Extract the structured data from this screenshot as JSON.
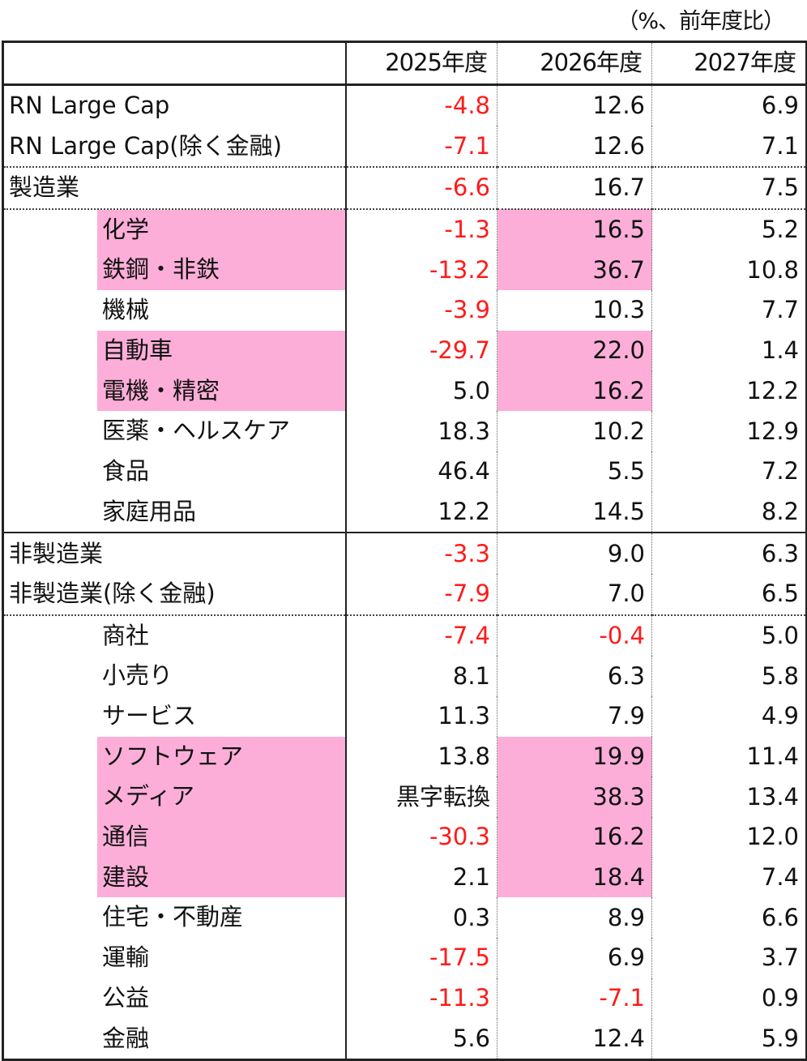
{
  "unit_note": "（%、前年度比）",
  "header": {
    "label": "",
    "cols": [
      "2025年度",
      "2026年度",
      "2027年度"
    ]
  },
  "highlight_color": "#fcaed9",
  "negative_color": "#ff1a1a",
  "rows": [
    {
      "label": "RN Large Cap",
      "indent": false,
      "v": [
        "-4.8",
        "12.6",
        "6.9"
      ],
      "neg": [
        true,
        false,
        false
      ],
      "pink_label": false,
      "pink_c2": false,
      "sep": "solid"
    },
    {
      "label": "RN Large Cap(除く金融)",
      "indent": false,
      "v": [
        "-7.1",
        "12.6",
        "7.1"
      ],
      "neg": [
        true,
        false,
        false
      ],
      "pink_label": false,
      "pink_c2": false,
      "sep": ""
    },
    {
      "label": "製造業",
      "indent": false,
      "v": [
        "-6.6",
        "16.7",
        "7.5"
      ],
      "neg": [
        true,
        false,
        false
      ],
      "pink_label": false,
      "pink_c2": false,
      "sep": "dotted"
    },
    {
      "label": "化学",
      "indent": true,
      "v": [
        "-1.3",
        "16.5",
        "5.2"
      ],
      "neg": [
        true,
        false,
        false
      ],
      "pink_label": true,
      "pink_c2": true,
      "sep": "dotted"
    },
    {
      "label": "鉄鋼・非鉄",
      "indent": true,
      "v": [
        "-13.2",
        "36.7",
        "10.8"
      ],
      "neg": [
        true,
        false,
        false
      ],
      "pink_label": true,
      "pink_c2": true,
      "sep": ""
    },
    {
      "label": "機械",
      "indent": true,
      "v": [
        "-3.9",
        "10.3",
        "7.7"
      ],
      "neg": [
        true,
        false,
        false
      ],
      "pink_label": false,
      "pink_c2": false,
      "sep": ""
    },
    {
      "label": "自動車",
      "indent": true,
      "v": [
        "-29.7",
        "22.0",
        "1.4"
      ],
      "neg": [
        true,
        false,
        false
      ],
      "pink_label": true,
      "pink_c2": true,
      "sep": ""
    },
    {
      "label": "電機・精密",
      "indent": true,
      "v": [
        "5.0",
        "16.2",
        "12.2"
      ],
      "neg": [
        false,
        false,
        false
      ],
      "pink_label": true,
      "pink_c2": true,
      "sep": ""
    },
    {
      "label": "医薬・ヘルスケア",
      "indent": true,
      "v": [
        "18.3",
        "10.2",
        "12.9"
      ],
      "neg": [
        false,
        false,
        false
      ],
      "pink_label": false,
      "pink_c2": false,
      "sep": ""
    },
    {
      "label": "食品",
      "indent": true,
      "v": [
        "46.4",
        "5.5",
        "7.2"
      ],
      "neg": [
        false,
        false,
        false
      ],
      "pink_label": false,
      "pink_c2": false,
      "sep": ""
    },
    {
      "label": "家庭用品",
      "indent": true,
      "v": [
        "12.2",
        "14.5",
        "8.2"
      ],
      "neg": [
        false,
        false,
        false
      ],
      "pink_label": false,
      "pink_c2": false,
      "sep": ""
    },
    {
      "label": "非製造業",
      "indent": false,
      "v": [
        "-3.3",
        "9.0",
        "6.3"
      ],
      "neg": [
        true,
        false,
        false
      ],
      "pink_label": false,
      "pink_c2": false,
      "sep": "solid"
    },
    {
      "label": "非製造業(除く金融)",
      "indent": false,
      "v": [
        "-7.9",
        "7.0",
        "6.5"
      ],
      "neg": [
        true,
        false,
        false
      ],
      "pink_label": false,
      "pink_c2": false,
      "sep": ""
    },
    {
      "label": "商社",
      "indent": true,
      "v": [
        "-7.4",
        "-0.4",
        "5.0"
      ],
      "neg": [
        true,
        true,
        false
      ],
      "pink_label": false,
      "pink_c2": false,
      "sep": "dotted"
    },
    {
      "label": "小売り",
      "indent": true,
      "v": [
        "8.1",
        "6.3",
        "5.8"
      ],
      "neg": [
        false,
        false,
        false
      ],
      "pink_label": false,
      "pink_c2": false,
      "sep": ""
    },
    {
      "label": "サービス",
      "indent": true,
      "v": [
        "11.3",
        "7.9",
        "4.9"
      ],
      "neg": [
        false,
        false,
        false
      ],
      "pink_label": false,
      "pink_c2": false,
      "sep": ""
    },
    {
      "label": "ソフトウェア",
      "indent": true,
      "v": [
        "13.8",
        "19.9",
        "11.4"
      ],
      "neg": [
        false,
        false,
        false
      ],
      "pink_label": true,
      "pink_c2": true,
      "sep": ""
    },
    {
      "label": "メディア",
      "indent": true,
      "v": [
        "黒字転換",
        "38.3",
        "13.4"
      ],
      "neg": [
        false,
        false,
        false
      ],
      "pink_label": true,
      "pink_c2": true,
      "sep": ""
    },
    {
      "label": "通信",
      "indent": true,
      "v": [
        "-30.3",
        "16.2",
        "12.0"
      ],
      "neg": [
        true,
        false,
        false
      ],
      "pink_label": true,
      "pink_c2": true,
      "sep": ""
    },
    {
      "label": "建設",
      "indent": true,
      "v": [
        "2.1",
        "18.4",
        "7.4"
      ],
      "neg": [
        false,
        false,
        false
      ],
      "pink_label": true,
      "pink_c2": true,
      "sep": ""
    },
    {
      "label": "住宅・不動産",
      "indent": true,
      "v": [
        "0.3",
        "8.9",
        "6.6"
      ],
      "neg": [
        false,
        false,
        false
      ],
      "pink_label": false,
      "pink_c2": false,
      "sep": ""
    },
    {
      "label": "運輸",
      "indent": true,
      "v": [
        "-17.5",
        "6.9",
        "3.7"
      ],
      "neg": [
        true,
        false,
        false
      ],
      "pink_label": false,
      "pink_c2": false,
      "sep": ""
    },
    {
      "label": "公益",
      "indent": true,
      "v": [
        "-11.3",
        "-7.1",
        "0.9"
      ],
      "neg": [
        true,
        true,
        false
      ],
      "pink_label": false,
      "pink_c2": false,
      "sep": ""
    },
    {
      "label": "金融",
      "indent": true,
      "v": [
        "5.6",
        "12.4",
        "5.9"
      ],
      "neg": [
        false,
        false,
        false
      ],
      "pink_label": false,
      "pink_c2": false,
      "sep": ""
    }
  ]
}
